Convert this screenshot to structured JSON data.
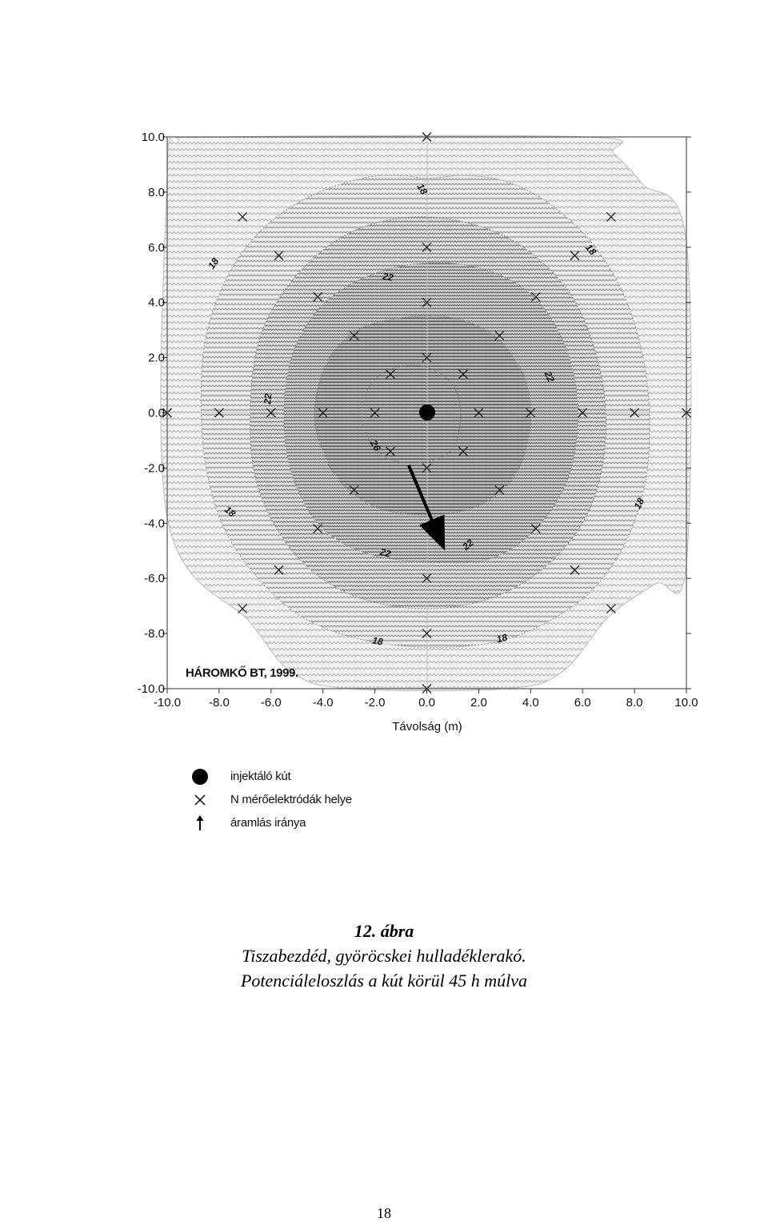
{
  "chart_data": {
    "type": "contour",
    "xlabel": "Távolság (m)",
    "ylabel": "",
    "xlim": [
      -10,
      10
    ],
    "ylim": [
      -10,
      10
    ],
    "xticks": [
      "-10.0",
      "-8.0",
      "-6.0",
      "-4.0",
      "-2.0",
      "0.0",
      "2.0",
      "4.0",
      "6.0",
      "8.0",
      "10.0"
    ],
    "yticks": [
      "10.0",
      "8.0",
      "6.0",
      "4.0",
      "2.0",
      "0.0",
      "-2.0",
      "-4.0",
      "-6.0",
      "-8.0",
      "-10.0"
    ],
    "watermark_text": "HÁROMKŐ BT, 1999.",
    "grid": "center cross lines at x=0 and y=0",
    "injection_well": [
      0,
      0
    ],
    "flow_arrow": {
      "from": [
        -0.7,
        -1.9
      ],
      "to": [
        0.7,
        -5.0
      ]
    },
    "contours": [
      {
        "level": "18",
        "points": [
          [
            -10,
            8.6
          ],
          [
            -10,
            -3.8
          ],
          [
            -6.8,
            -7.6
          ],
          [
            -5.2,
            -9.4
          ],
          [
            -3,
            -10
          ],
          [
            3,
            -10
          ],
          [
            5.2,
            -9.4
          ],
          [
            7,
            -7.4
          ],
          [
            8.8,
            -6.2
          ],
          [
            10,
            -5.5
          ],
          [
            10,
            6.2
          ],
          [
            8.3,
            8.3
          ],
          [
            7.2,
            9.4
          ],
          [
            6.2,
            10
          ],
          [
            -8,
            10
          ],
          [
            -9.6,
            9.8
          ]
        ]
      },
      {
        "level": "18",
        "points": [
          [
            0,
            8.5
          ],
          [
            1.4,
            8.6
          ],
          [
            3,
            8.4
          ],
          [
            4.7,
            7.6
          ],
          [
            6.5,
            6
          ],
          [
            7.8,
            3.8
          ],
          [
            8.5,
            1
          ],
          [
            8.5,
            -2
          ],
          [
            7.8,
            -4.4
          ],
          [
            6.5,
            -6.3
          ],
          [
            4.8,
            -7.5
          ],
          [
            2.7,
            -8.3
          ],
          [
            0,
            -8.5
          ],
          [
            -2.6,
            -8.2
          ],
          [
            -4.8,
            -7.4
          ],
          [
            -6.5,
            -6
          ],
          [
            -7.8,
            -4.2
          ],
          [
            -8.5,
            -2
          ],
          [
            -8.7,
            0.5
          ],
          [
            -8.5,
            2.8
          ],
          [
            -7.7,
            4.9
          ],
          [
            -6.4,
            6.6
          ],
          [
            -4.6,
            7.8
          ],
          [
            -2.5,
            8.5
          ],
          [
            -1,
            8.6
          ]
        ]
      },
      {
        "level": "22",
        "points": [
          [
            0,
            7.1
          ],
          [
            3,
            6.4
          ],
          [
            5.3,
            4.6
          ],
          [
            6.5,
            2.2
          ],
          [
            6.9,
            -0.5
          ],
          [
            6.4,
            -3.2
          ],
          [
            5,
            -5.2
          ],
          [
            2.8,
            -6.6
          ],
          [
            0,
            -7.1
          ],
          [
            -2.9,
            -6.6
          ],
          [
            -5.1,
            -5.1
          ],
          [
            -6.5,
            -2.7
          ],
          [
            -6.8,
            0
          ],
          [
            -6.4,
            2.8
          ],
          [
            -5,
            5
          ],
          [
            -2.8,
            6.6
          ]
        ]
      },
      {
        "level": "22",
        "points": [
          [
            -1.5,
            5.2
          ],
          [
            1.2,
            5.4
          ],
          [
            3.6,
            4.6
          ],
          [
            5.1,
            2.9
          ],
          [
            5.8,
            0.5
          ],
          [
            5.5,
            -2.2
          ],
          [
            4.2,
            -4.2
          ],
          [
            2.4,
            -5.3
          ],
          [
            0,
            -5.4
          ],
          [
            -2.3,
            -5.1
          ],
          [
            -4.1,
            -4.1
          ],
          [
            -5.2,
            -2.2
          ],
          [
            -5.5,
            0
          ],
          [
            -5.1,
            2.3
          ],
          [
            -3.8,
            4.1
          ]
        ]
      },
      {
        "level": "26",
        "points": [
          [
            -1.8,
            3.3
          ],
          [
            0.6,
            3.5
          ],
          [
            2.6,
            2.8
          ],
          [
            3.8,
            1.2
          ],
          [
            4,
            -0.6
          ],
          [
            3.3,
            -2.4
          ],
          [
            1.9,
            -3.4
          ],
          [
            0,
            -3.7
          ],
          [
            -2,
            -3.4
          ],
          [
            -3.5,
            -2.3
          ],
          [
            -4.3,
            -0.4
          ],
          [
            -4,
            1.5
          ],
          [
            -3.1,
            2.7
          ]
        ]
      },
      {
        "level": "",
        "points": [
          [
            -1.6,
            1.5
          ],
          [
            -0.2,
            1.7
          ],
          [
            1,
            1
          ],
          [
            1.3,
            -0.2
          ],
          [
            0.9,
            -1.4
          ],
          [
            -0.3,
            -1.8
          ],
          [
            -1.6,
            -1.6
          ],
          [
            -2.4,
            -0.6
          ],
          [
            -2.4,
            0.6
          ]
        ]
      }
    ],
    "contour_labels": [
      {
        "text": "18",
        "x": -0.2,
        "y": 8.1,
        "rot": 60
      },
      {
        "text": "18",
        "x": 6.3,
        "y": 5.9,
        "rot": 50
      },
      {
        "text": "18",
        "x": -8.2,
        "y": 5.4,
        "rot": -55
      },
      {
        "text": "18",
        "x": -7.6,
        "y": -3.6,
        "rot": 40
      },
      {
        "text": "18",
        "x": 8.2,
        "y": -3.3,
        "rot": -62
      },
      {
        "text": "18",
        "x": -1.9,
        "y": -8.3,
        "rot": 10
      },
      {
        "text": "18",
        "x": 2.9,
        "y": -8.2,
        "rot": -15
      },
      {
        "text": "22",
        "x": -1.5,
        "y": 4.9,
        "rot": 10
      },
      {
        "text": "22",
        "x": -6.1,
        "y": 0.5,
        "rot": -85
      },
      {
        "text": "22",
        "x": 4.7,
        "y": 1.3,
        "rot": 65
      },
      {
        "text": "22",
        "x": -1.6,
        "y": -5.1,
        "rot": 15
      },
      {
        "text": "22",
        "x": 1.6,
        "y": -4.8,
        "rot": -40
      },
      {
        "text": "26",
        "x": -2.0,
        "y": -1.2,
        "rot": 60
      }
    ],
    "electrodes": [
      [
        0,
        10
      ],
      [
        -7.1,
        7.1
      ],
      [
        7.1,
        7.1
      ],
      [
        -5.7,
        5.7
      ],
      [
        0,
        6
      ],
      [
        5.7,
        5.7
      ],
      [
        -4.2,
        4.2
      ],
      [
        0,
        4
      ],
      [
        4.2,
        4.2
      ],
      [
        -2.8,
        2.8
      ],
      [
        2.8,
        2.8
      ],
      [
        0,
        2
      ],
      [
        -1.4,
        1.4
      ],
      [
        1.4,
        1.4
      ],
      [
        -10,
        0
      ],
      [
        -8,
        0
      ],
      [
        -6,
        0
      ],
      [
        -4,
        0
      ],
      [
        -2,
        0
      ],
      [
        2,
        0
      ],
      [
        4,
        0
      ],
      [
        6,
        0
      ],
      [
        8,
        0
      ],
      [
        10,
        0
      ],
      [
        -1.4,
        -1.4
      ],
      [
        1.4,
        -1.4
      ],
      [
        0,
        -2
      ],
      [
        -2.8,
        -2.8
      ],
      [
        2.8,
        -2.8
      ],
      [
        -4.2,
        -4.2
      ],
      [
        4.2,
        -4.2
      ],
      [
        -5.7,
        -5.7
      ],
      [
        0,
        -6
      ],
      [
        5.7,
        -5.7
      ],
      [
        -7.1,
        -7.1
      ],
      [
        7.1,
        -7.1
      ],
      [
        0,
        -8
      ],
      [
        0,
        -10
      ]
    ]
  },
  "legend": {
    "items": [
      {
        "symbol": "filled-circle",
        "label": "injektáló kút"
      },
      {
        "symbol": "x-mark",
        "label": "N mérőelektródák helye"
      },
      {
        "symbol": "up-arrow",
        "label": "áramlás iránya"
      }
    ]
  },
  "caption": {
    "number": "12. ábra",
    "line1": "Tiszabezdéd, györöcskei hulladéklerakó.",
    "line2": "Potenciáleloszlás a kút körül 45 h múlva"
  },
  "page_number": "18"
}
